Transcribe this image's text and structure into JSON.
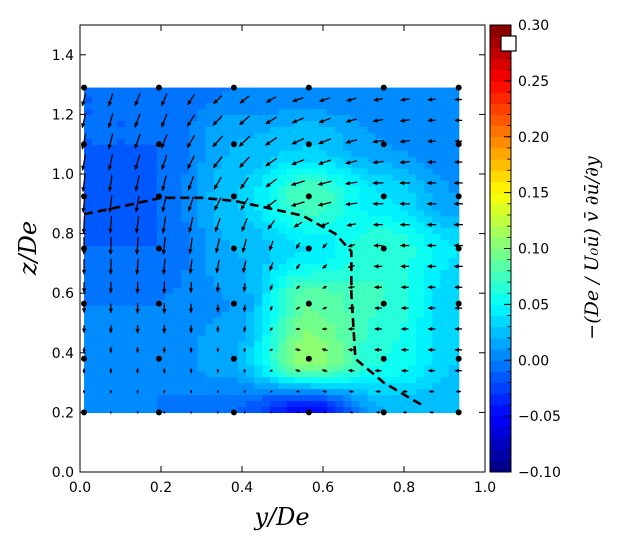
{
  "chart_data": {
    "type": "heatmap",
    "subtype": "filled-contour with quiver overlay",
    "xlabel": "y/De",
    "ylabel": "z/De",
    "colorbar_label": "−(De / U₀ū) v̄ ∂ū/∂y",
    "xlim": [
      0.0,
      1.0
    ],
    "ylim": [
      0.0,
      1.5
    ],
    "xticks": [
      "0.0",
      "0.2",
      "0.4",
      "0.6",
      "0.8",
      "1.0"
    ],
    "yticks": [
      "0.0",
      "0.2",
      "0.4",
      "0.6",
      "0.8",
      "1.0",
      "1.2",
      "1.4"
    ],
    "colorbar": {
      "colormap": "jet",
      "range": [
        -0.1,
        0.3
      ],
      "ticks": [
        "−0.10",
        "−0.05",
        "0.00",
        "0.05",
        "0.10",
        "0.15",
        "0.20",
        "0.25",
        "0.30"
      ],
      "level_step": 0.01
    },
    "grid": false,
    "field": {
      "y": [
        0.01,
        0.195,
        0.38,
        0.565,
        0.75,
        0.935
      ],
      "z": [
        0.2,
        0.38,
        0.565,
        0.75,
        0.925,
        1.1,
        1.29
      ],
      "values": [
        [
          0.0,
          0.0,
          -0.01,
          -0.05,
          0.02,
          0.02
        ],
        [
          0.0,
          0.0,
          0.02,
          0.11,
          0.06,
          0.03
        ],
        [
          0.0,
          0.0,
          0.01,
          0.09,
          0.07,
          0.03
        ],
        [
          -0.01,
          -0.01,
          0.02,
          0.04,
          0.07,
          0.04
        ],
        [
          -0.02,
          -0.01,
          0.03,
          0.08,
          0.04,
          0.01
        ],
        [
          -0.01,
          -0.01,
          0.02,
          0.03,
          0.01,
          0.0
        ],
        [
          -0.01,
          -0.01,
          0.0,
          0.0,
          0.0,
          0.0
        ]
      ],
      "u": [
        [
          0,
          0,
          0,
          -0.1,
          -0.2,
          -0.2
        ],
        [
          0,
          0,
          0,
          -0.3,
          -0.4,
          -0.4
        ],
        [
          0,
          0,
          0,
          -0.2,
          -0.4,
          -0.4
        ],
        [
          0,
          -0.1,
          -0.2,
          -0.2,
          -0.5,
          -0.5
        ],
        [
          -0.1,
          -0.2,
          -0.4,
          -0.8,
          -0.6,
          -0.5
        ],
        [
          -0.2,
          -0.3,
          -0.6,
          -0.7,
          -0.6,
          -0.4
        ],
        [
          -0.2,
          -0.3,
          -0.5,
          -0.6,
          -0.5,
          -0.4
        ]
      ],
      "w": [
        [
          -0.1,
          -0.1,
          -0.1,
          0,
          0,
          0
        ],
        [
          -0.3,
          -0.3,
          -0.2,
          0.1,
          0,
          0
        ],
        [
          -0.5,
          -0.6,
          -0.4,
          -0.1,
          0,
          0
        ],
        [
          -1,
          -1,
          -0.8,
          -0.3,
          0,
          0
        ],
        [
          -1,
          -0.9,
          -0.7,
          -0.2,
          0,
          0
        ],
        [
          -0.9,
          -0.8,
          -0.6,
          -0.3,
          -0.1,
          0
        ],
        [
          -0.7,
          -0.7,
          -0.4,
          -0.2,
          -0.1,
          0
        ]
      ]
    },
    "measurement_points": {
      "y": [
        0.01,
        0.195,
        0.38,
        0.565,
        0.75,
        0.935
      ],
      "z": [
        0.2,
        0.38,
        0.565,
        0.75,
        0.925,
        1.1,
        1.29
      ]
    },
    "dashed_line": [
      [
        0.01,
        0.865
      ],
      [
        0.1,
        0.89
      ],
      [
        0.2,
        0.92
      ],
      [
        0.3,
        0.92
      ],
      [
        0.38,
        0.91
      ],
      [
        0.45,
        0.89
      ],
      [
        0.55,
        0.86
      ],
      [
        0.63,
        0.8
      ],
      [
        0.67,
        0.74
      ],
      [
        0.67,
        0.6
      ],
      [
        0.68,
        0.38
      ],
      [
        0.75,
        0.3
      ],
      [
        0.85,
        0.22
      ]
    ]
  }
}
